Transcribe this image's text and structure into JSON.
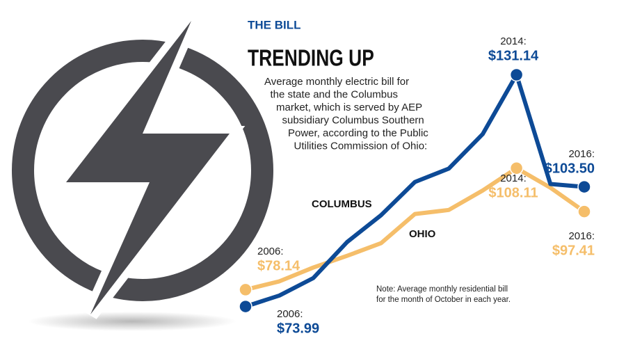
{
  "chart_data": {
    "type": "line",
    "kicker": "THE BILL",
    "title": "TRENDING UP",
    "subtitle": [
      "Average monthly electric bill for",
      "the state and the Columbus",
      "market, which is served by AEP",
      "subsidiary Columbus Southern",
      "Power, according to the Public",
      "Utilities Commission of Ohio:"
    ],
    "note": [
      "Note: Average monthly residential bill",
      "for the month of October in each year."
    ],
    "x": [
      2006,
      2007,
      2008,
      2009,
      2010,
      2011,
      2012,
      2013,
      2014,
      2015,
      2016
    ],
    "xlim": [
      2006,
      2016
    ],
    "ylim": [
      65,
      135
    ],
    "series": [
      {
        "name": "COLUMBUS",
        "color": "#0d4a96",
        "values": [
          73.99,
          76.7,
          81.0,
          89.9,
          96.5,
          104.7,
          108.0,
          116.5,
          131.14,
          104.2,
          103.5
        ],
        "value_labels": [
          "$73.99",
          null,
          null,
          null,
          null,
          null,
          null,
          null,
          "$131.14",
          null,
          "$103.50"
        ],
        "year_labels": [
          "2006:",
          null,
          null,
          null,
          null,
          null,
          null,
          null,
          "2014:",
          null,
          "2016:"
        ]
      },
      {
        "name": "OHIO",
        "color": "#f5be6a",
        "values": [
          78.14,
          80.2,
          83.6,
          86.5,
          89.6,
          96.8,
          97.8,
          102.6,
          108.11,
          103.3,
          97.41
        ],
        "value_labels": [
          "$78.14",
          null,
          null,
          null,
          null,
          null,
          null,
          null,
          "$108.11",
          null,
          "$97.41"
        ],
        "year_labels": [
          "2006:",
          null,
          null,
          null,
          null,
          null,
          null,
          null,
          "2014:",
          null,
          "2016:"
        ]
      }
    ]
  }
}
